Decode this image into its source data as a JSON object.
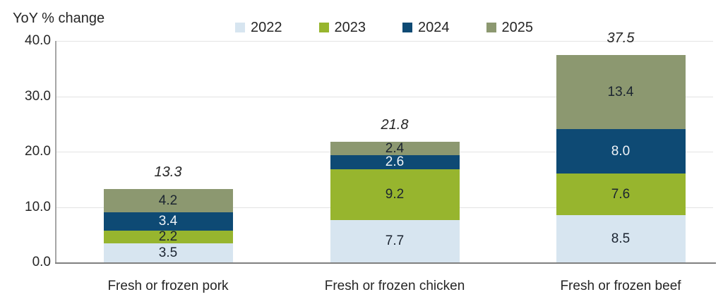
{
  "chart_data": {
    "type": "bar",
    "stacked": true,
    "y_axis_title": "YoY % change",
    "categories": [
      "Fresh or frozen pork",
      "Fresh or frozen chicken",
      "Fresh or frozen beef"
    ],
    "series": [
      {
        "name": "2022",
        "color": "#d7e5f0",
        "label_color": "#1b2430",
        "values": [
          3.5,
          7.7,
          8.5
        ]
      },
      {
        "name": "2023",
        "color": "#97b52e",
        "label_color": "#1b2430",
        "values": [
          2.2,
          9.2,
          7.6
        ]
      },
      {
        "name": "2024",
        "color": "#0e4a74",
        "label_color": "#f0f4f8",
        "values": [
          3.4,
          2.6,
          8.0
        ]
      },
      {
        "name": "2025",
        "color": "#8c9870",
        "label_color": "#1b2430",
        "values": [
          4.2,
          2.4,
          13.4
        ]
      }
    ],
    "totals": [
      13.3,
      21.8,
      37.5
    ],
    "total_labels": [
      "13.3",
      "21.8",
      "37.5"
    ],
    "ylim": [
      0,
      40
    ],
    "yticks": [
      0,
      10,
      20,
      30,
      40
    ],
    "ytick_labels": [
      "0.0",
      "10.0",
      "20.0",
      "30.0",
      "40.0"
    ],
    "grid": true,
    "legend_position": "top",
    "colors": {
      "axis_line": "#a6a6a6",
      "baseline": "#808080",
      "gridline": "#e3e3e3",
      "text": "#262626"
    }
  }
}
